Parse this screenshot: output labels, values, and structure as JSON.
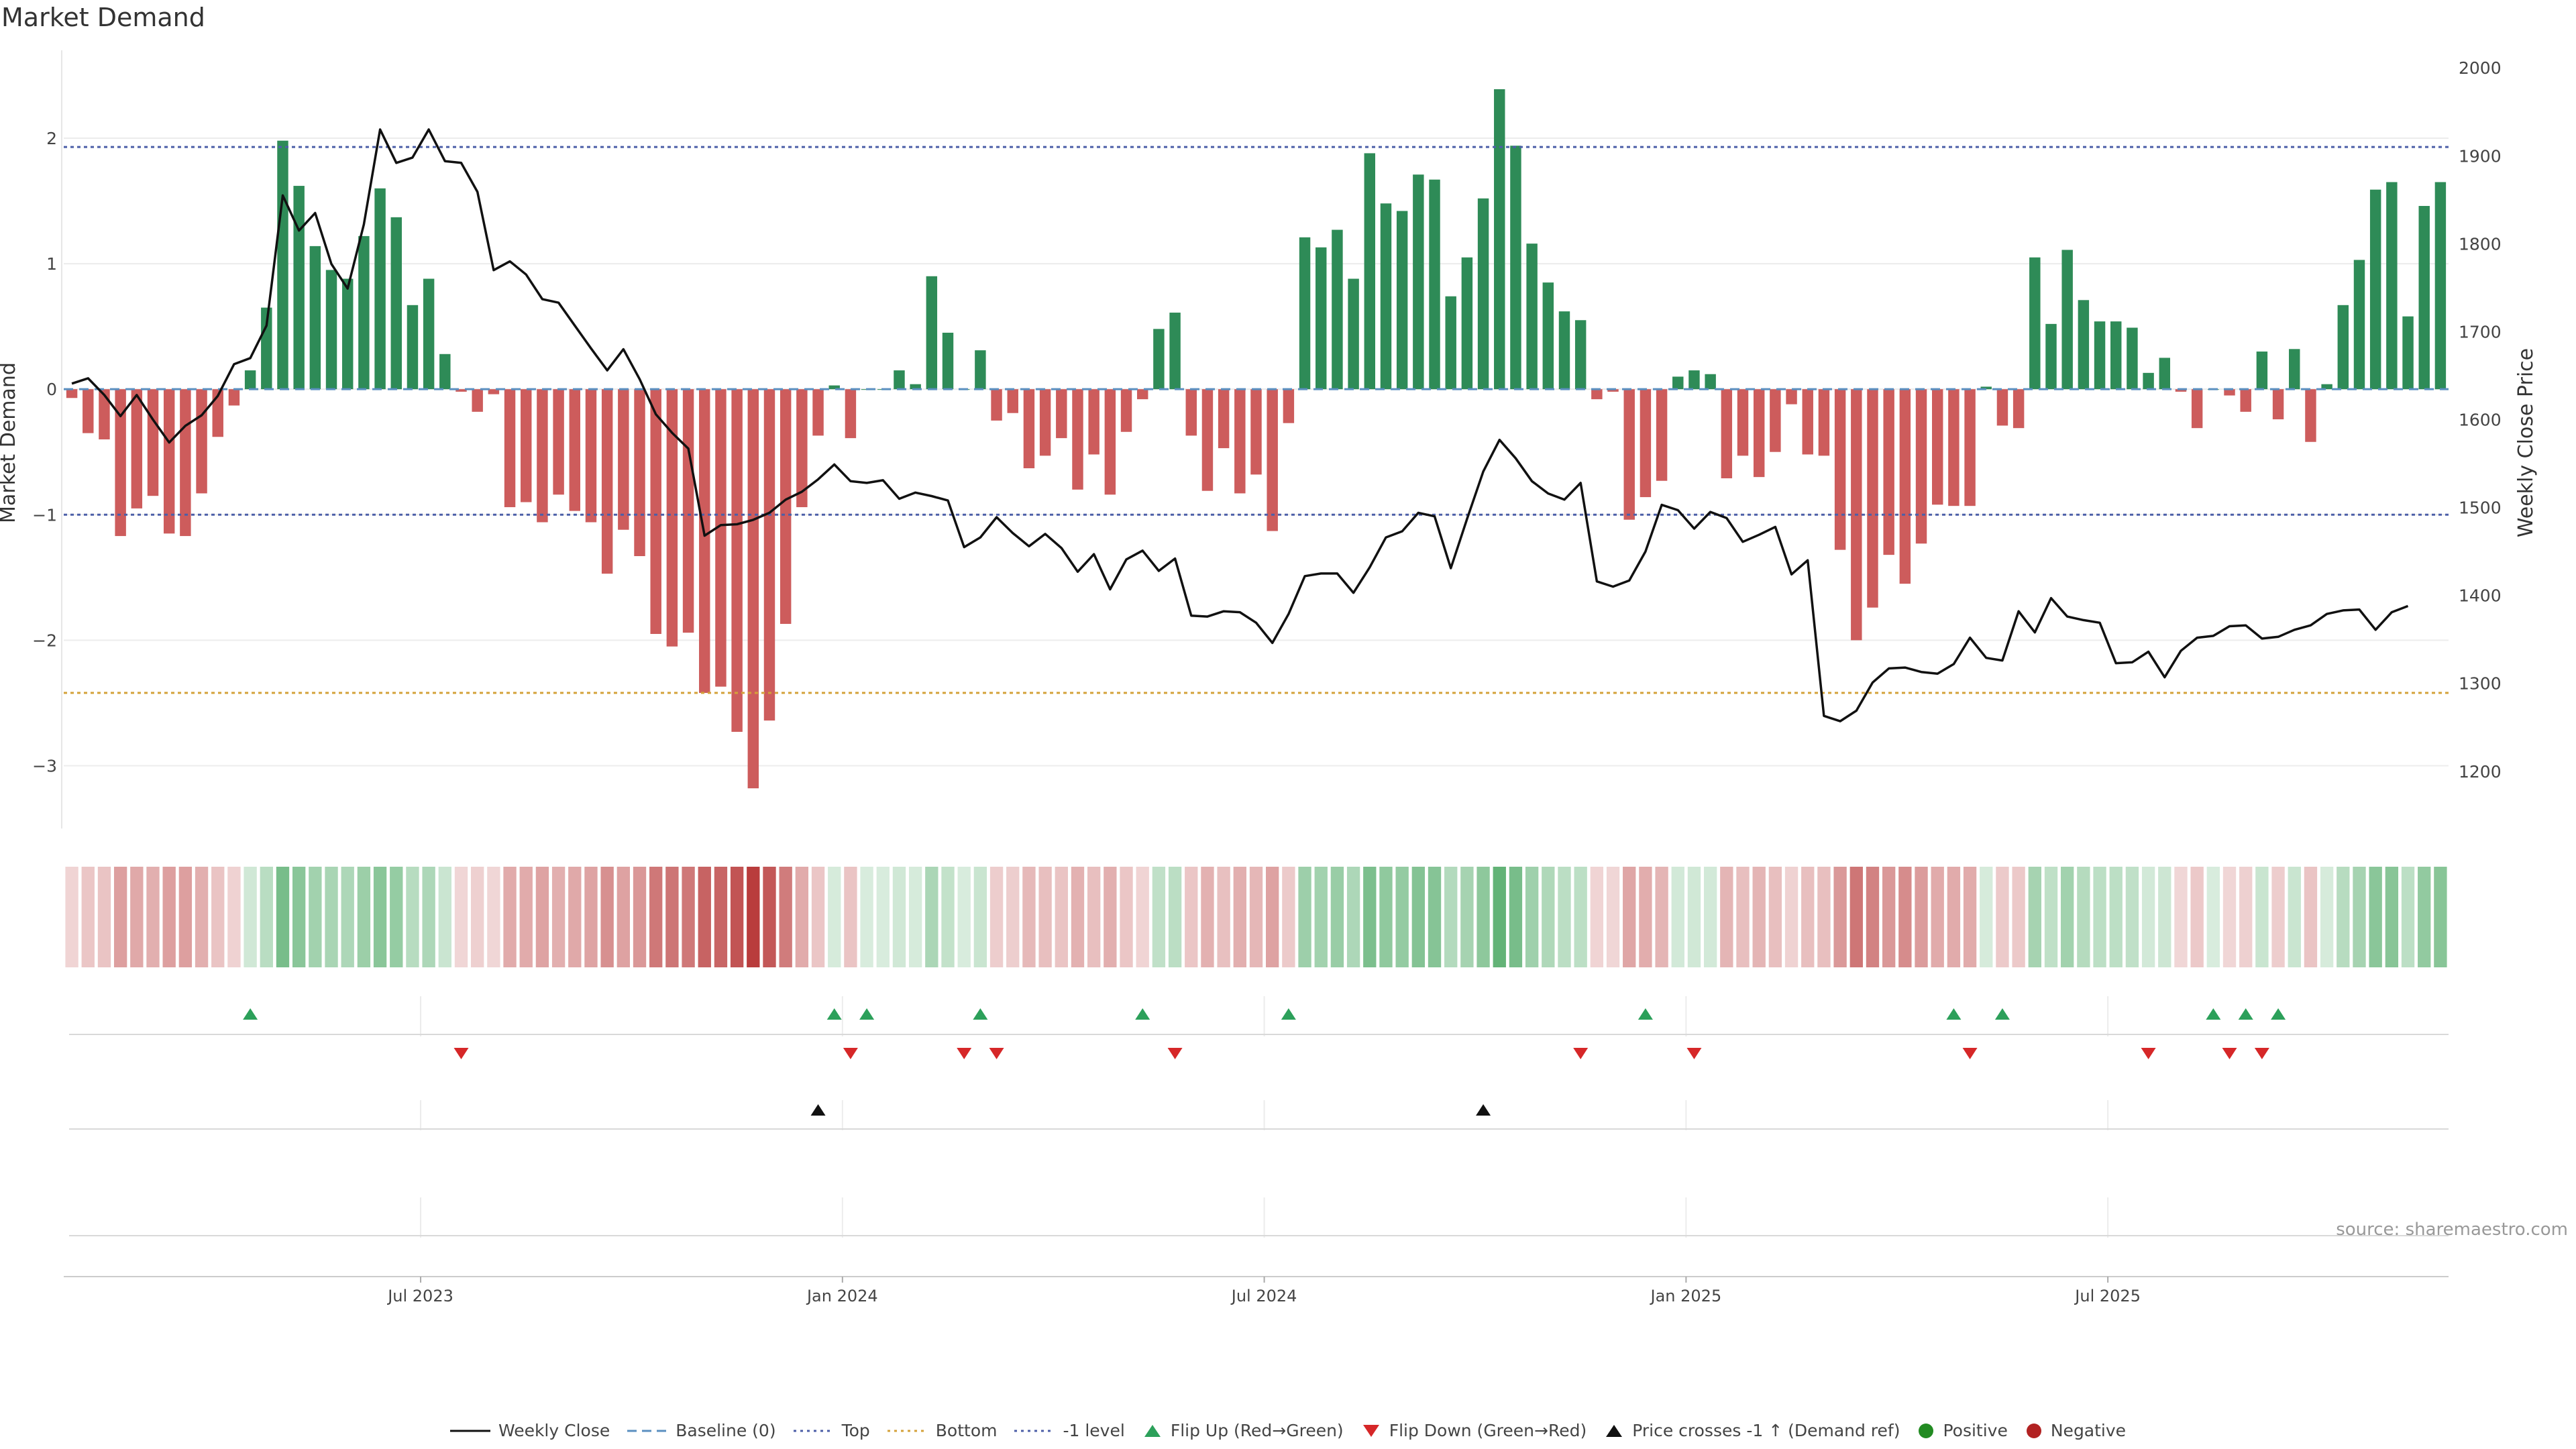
{
  "chart_data": {
    "type": "bar",
    "title": "Market Demand",
    "ylabel": "Market Demand",
    "y2label": "Weekly Close Price",
    "ylim": [
      -3.5,
      2.7
    ],
    "y2lim": [
      1135,
      2020
    ],
    "yticks": [
      "2",
      "1",
      "0",
      "−1",
      "−2",
      "−3"
    ],
    "yticks_values": [
      2,
      1,
      0,
      -1,
      -2,
      -3
    ],
    "y2ticks": [
      "2000",
      "1900",
      "1800",
      "1700",
      "1600",
      "1500",
      "1400",
      "1300",
      "1200"
    ],
    "y2ticks_values": [
      2000,
      1900,
      1800,
      1700,
      1600,
      1500,
      1400,
      1300,
      1200
    ],
    "xticks": [
      "Jul 2023",
      "Jan 2024",
      "Jul 2024",
      "Jan 2025",
      "Jul 2025"
    ],
    "xticks_index": [
      22,
      48,
      74,
      100,
      126
    ],
    "reference_lines": {
      "top": 1.93,
      "bottom": -2.42,
      "minus_one_level": -1.0,
      "baseline": 0
    },
    "series": [
      {
        "name": "Market Demand",
        "type": "bar",
        "values": [
          -0.07,
          -0.35,
          -0.4,
          -1.17,
          -0.95,
          -0.85,
          -1.15,
          -1.17,
          -0.83,
          -0.38,
          -0.13,
          0.15,
          0.65,
          1.98,
          1.62,
          1.14,
          0.95,
          0.88,
          1.22,
          1.6,
          1.37,
          0.67,
          0.88,
          0.28,
          -0.02,
          -0.18,
          -0.04,
          -0.94,
          -0.9,
          -1.06,
          -0.84,
          -0.97,
          -1.06,
          -1.47,
          -1.12,
          -1.33,
          -1.95,
          -2.05,
          -1.94,
          -2.42,
          -2.37,
          -2.73,
          -3.18,
          -2.64,
          -1.87,
          -0.94,
          -0.37,
          0.03,
          -0.39,
          0.0,
          0.0,
          0.15,
          0.04,
          0.9,
          0.45,
          0.0,
          0.31,
          -0.25,
          -0.19,
          -0.63,
          -0.53,
          -0.39,
          -0.8,
          -0.52,
          -0.84,
          -0.34,
          -0.08,
          0.48,
          0.61,
          -0.37,
          -0.81,
          -0.47,
          -0.83,
          -0.68,
          -1.13,
          -0.27,
          1.21,
          1.13,
          1.27,
          0.88,
          1.88,
          1.48,
          1.42,
          1.71,
          1.67,
          0.74,
          1.05,
          1.52,
          2.39,
          1.94,
          1.16,
          0.85,
          0.62,
          0.55,
          -0.08,
          -0.02,
          -1.04,
          -0.86,
          -0.73,
          0.1,
          0.15,
          0.12,
          -0.71,
          -0.53,
          -0.7,
          -0.5,
          -0.12,
          -0.52,
          -0.53,
          -1.28,
          -2.0,
          -1.74,
          -1.32,
          -1.55,
          -1.23,
          -0.92,
          -0.93,
          -0.93,
          0.02,
          -0.29,
          -0.31,
          1.05,
          0.52,
          1.11,
          0.71,
          0.54,
          0.54,
          0.49,
          0.13,
          0.25,
          -0.02,
          -0.31,
          0.0,
          -0.05,
          -0.18,
          0.3,
          -0.24,
          0.32,
          -0.42,
          0.04,
          0.67,
          1.03,
          1.59,
          1.65,
          0.58,
          1.46,
          1.65
        ]
      },
      {
        "name": "Weekly Close",
        "type": "line",
        "axis": "y2",
        "values": [
          1641,
          1647,
          1628,
          1604,
          1628,
          1600,
          1574,
          1593,
          1605,
          1627,
          1663,
          1670,
          1707,
          1855,
          1815,
          1835,
          1777,
          1749,
          1822,
          1930,
          1892,
          1898,
          1930,
          1894,
          1892,
          1859,
          1770,
          1780,
          1765,
          1737,
          1733,
          1707,
          1681,
          1656,
          1680,
          1646,
          1606,
          1585,
          1567,
          1468,
          1480,
          1481,
          1486,
          1494,
          1509,
          1518,
          1532,
          1549,
          1530,
          1528,
          1531,
          1510,
          1517,
          1513,
          1508,
          1455,
          1466,
          1489,
          1471,
          1456,
          1470,
          1454,
          1427,
          1447,
          1407,
          1441,
          1451,
          1428,
          1442,
          1377,
          1376,
          1382,
          1381,
          1369,
          1346,
          1379,
          1422,
          1425,
          1425,
          1403,
          1432,
          1466,
          1473,
          1494,
          1490,
          1431,
          1487,
          1541,
          1577,
          1556,
          1530,
          1516,
          1509,
          1528,
          1416,
          1410,
          1417,
          1450,
          1503,
          1497,
          1476,
          1495,
          1488,
          1461,
          1469,
          1478,
          1424,
          1440,
          1263,
          1257,
          1269,
          1301,
          1317,
          1318,
          1313,
          1311,
          1322,
          1352,
          1329,
          1326,
          1382,
          1358,
          1397,
          1376,
          1372,
          1369,
          1323,
          1324,
          1336,
          1307,
          1337,
          1352,
          1354,
          1365,
          1366,
          1351,
          1353,
          1361,
          1366,
          1379,
          1383,
          1384,
          1361,
          1381,
          1388
        ]
      },
      {
        "name": "Demand Heat",
        "type": "heatmap",
        "note": "color strip mirrors Market Demand sign and magnitude"
      },
      {
        "name": "Flip Up (Red→Green)",
        "type": "event",
        "index": [
          11,
          47,
          49,
          56,
          66,
          75,
          97,
          116,
          119,
          132,
          134,
          136
        ]
      },
      {
        "name": "Flip Down (Green→Red)",
        "type": "event",
        "index": [
          24,
          48,
          55,
          57,
          68,
          93,
          100,
          117,
          128,
          133,
          135
        ]
      },
      {
        "name": "Price crosses -1 ↑ (Demand ref)",
        "type": "event",
        "index": [
          46,
          87
        ]
      }
    ],
    "colors": {
      "positive": "#2e8b57",
      "negative": "#cd5c5c",
      "line": "#111111",
      "top": "#4c5fa8",
      "bottom": "#d4a23a",
      "minus_one": "#4c5fa8",
      "baseline": "#5a8fc0",
      "flip_up": "#2ca05a",
      "flip_down": "#d62728",
      "cross": "#111111",
      "positive_dot": "#228b22",
      "negative_dot": "#b22222"
    }
  },
  "source": "source: sharemaestro.com",
  "legend": [
    {
      "label": "Weekly Close",
      "icon": "line-solid-icon"
    },
    {
      "label": "Baseline (0)",
      "icon": "line-dashed-icon"
    },
    {
      "label": "Top",
      "icon": "line-dotted-icon"
    },
    {
      "label": "Bottom",
      "icon": "line-dotted-icon"
    },
    {
      "label": "-1 level",
      "icon": "line-dotted-icon"
    },
    {
      "label": "Flip Up (Red→Green)",
      "icon": "triangle-up-icon"
    },
    {
      "label": "Flip Down (Green→Red)",
      "icon": "triangle-down-icon"
    },
    {
      "label": "Price crosses -1 ↑ (Demand ref)",
      "icon": "triangle-up-icon"
    },
    {
      "label": "Positive",
      "icon": "circle-icon"
    },
    {
      "label": "Negative",
      "icon": "circle-icon"
    }
  ]
}
